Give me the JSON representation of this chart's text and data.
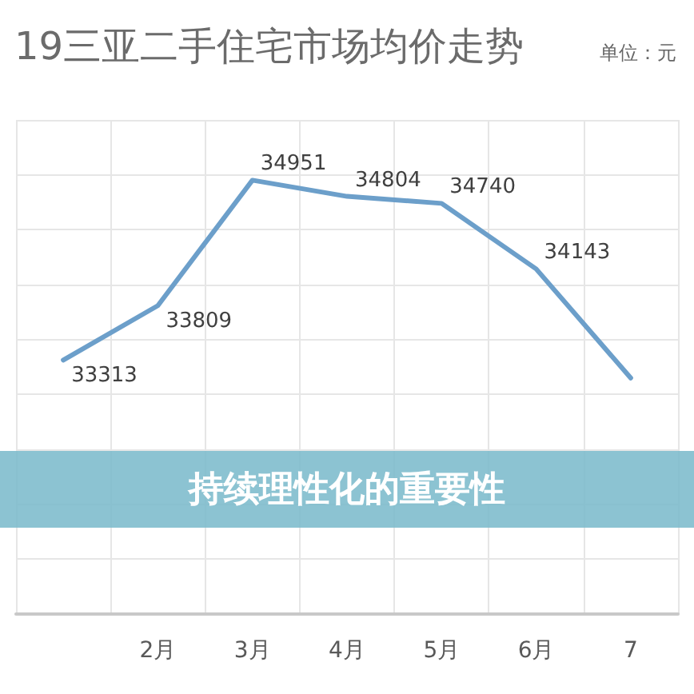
{
  "chart_data": {
    "type": "line",
    "title": "19三亚二手住宅市场均价走势",
    "subtitle": "单位：元",
    "annotations": [
      "持续理性化的重要性"
    ],
    "categories": [
      null,
      "2月",
      "3月",
      "4月",
      "5月",
      "6月",
      "7"
    ],
    "values": [
      33313,
      33809,
      34951,
      34804,
      34740,
      34143,
      33150
    ],
    "value_labels": [
      "33313",
      "33809",
      "34951",
      "34804",
      "34740",
      "34143",
      null
    ],
    "color": "#6c9fca",
    "ylim": [
      31000,
      35500
    ],
    "grid": true,
    "tick_labels": "x",
    "marker": "none",
    "line_style": "solid"
  }
}
